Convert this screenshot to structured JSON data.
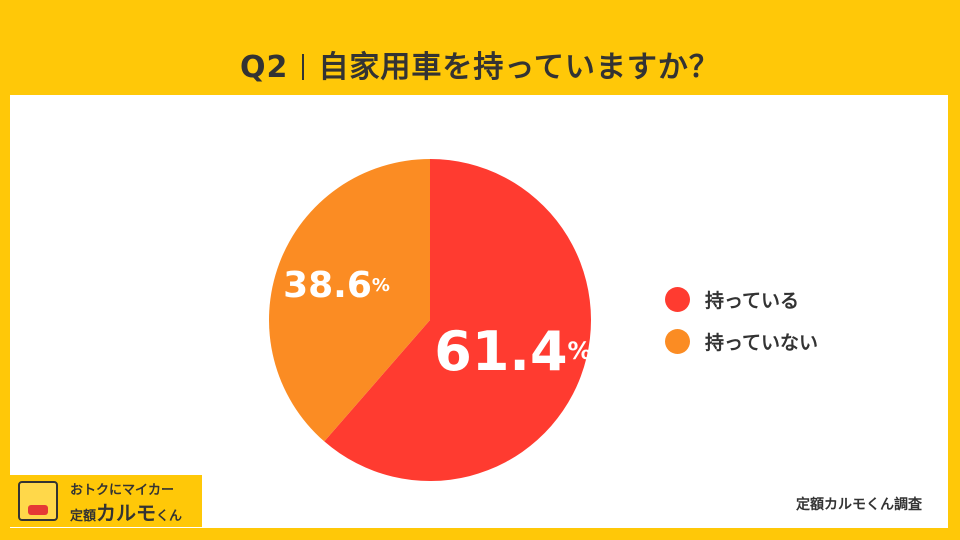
{
  "title": {
    "question": "Q2",
    "text": "自家用車を持っていますか？"
  },
  "chart_data": {
    "type": "pie",
    "categories": [
      "持っている",
      "持っていない"
    ],
    "values": [
      61.4,
      38.6
    ],
    "colors": [
      "#ff3b30",
      "#fb8c23"
    ],
    "value_labels": [
      "61.4",
      "38.6"
    ],
    "unit": "%",
    "legend_position": "right"
  },
  "legend": [
    {
      "label": "持っている",
      "color": "#ff3b30"
    },
    {
      "label": "持っていない",
      "color": "#fb8c23"
    }
  ],
  "credit": "定額カルモくん調査",
  "logo": {
    "tagline": "おトクにマイカー",
    "prefix": "定額",
    "name": "カルモ",
    "suffix": "くん"
  }
}
